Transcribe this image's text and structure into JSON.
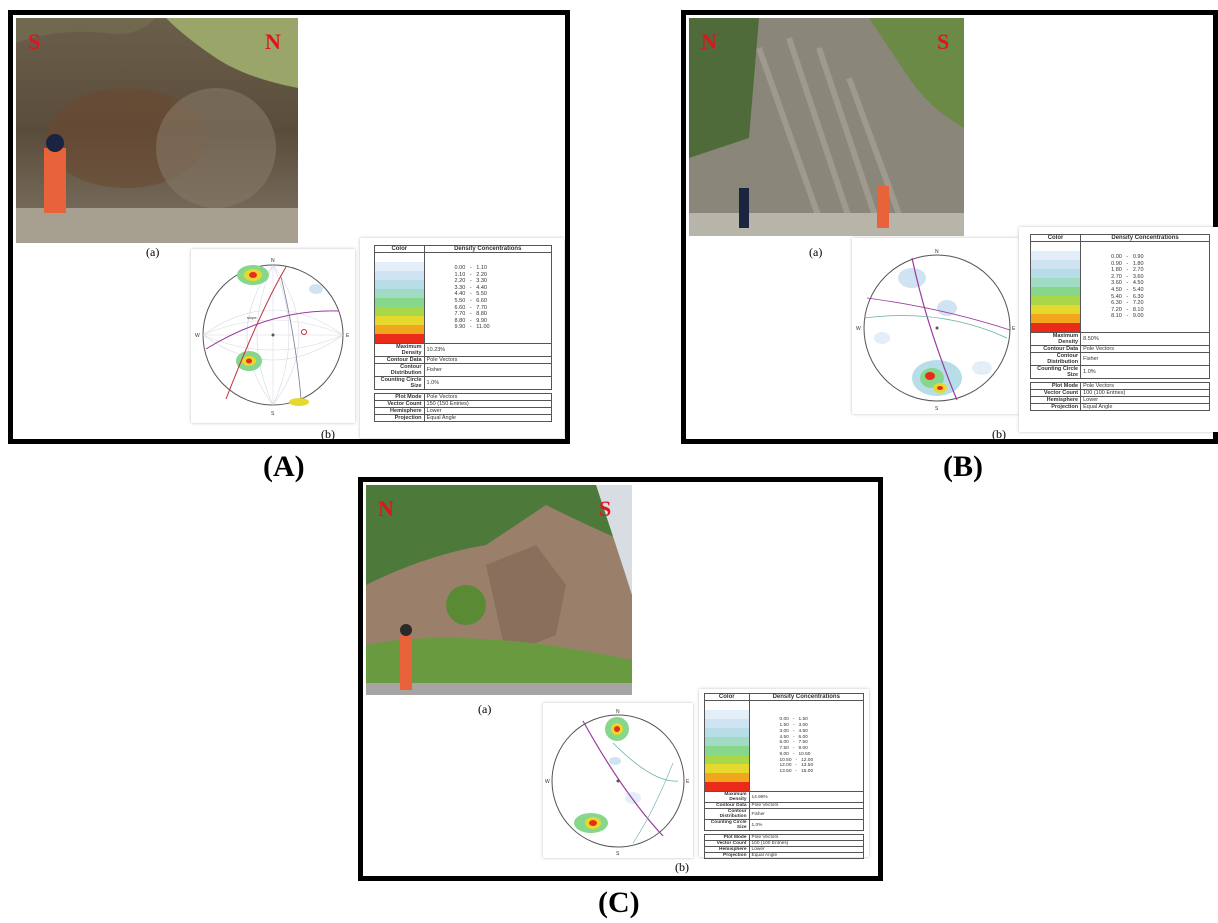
{
  "panels": [
    {
      "caption": "(A)",
      "photo_labels": {
        "left": "S",
        "right": "N"
      },
      "sublabel_a": "(a)",
      "sublabel_b": "(b)",
      "legend": {
        "color_header": "Color",
        "density_header": "Density Concentrations",
        "ranges": [
          "0.00   -   1.10",
          "1.10   -   2.20",
          "2.20   -   3.30",
          "3.30   -   4.40",
          "4.40   -   5.50",
          "5.50   -   6.60",
          "6.60   -   7.70",
          "7.70   -   8.80",
          "8.80   -   9.90",
          "9.90   -   11.00"
        ],
        "maximum_density": {
          "label": "Maximum Density",
          "value": "10.23%"
        },
        "contour_data": {
          "label": "Contour Data",
          "value": "Pole Vectors"
        },
        "contour_distribution": {
          "label": "Contour Distribution",
          "value": "Fisher"
        },
        "counting_circle_size": {
          "label": "Counting Circle Size",
          "value": "1.0%"
        },
        "plot_mode": {
          "label": "Plot Mode",
          "value": "Pole Vectors"
        },
        "vector_count": {
          "label": "Vector Count",
          "value": "150 (150 Entries)"
        },
        "hemisphere": {
          "label": "Hemisphere",
          "value": "Lower"
        },
        "projection": {
          "label": "Projection",
          "value": "Equal Angle"
        }
      },
      "stereonet": {
        "n": "N",
        "s": "S",
        "e": "E",
        "w": "W",
        "slope": "slope"
      }
    },
    {
      "caption": "(B)",
      "photo_labels": {
        "left": "N",
        "right": "S"
      },
      "sublabel_a": "(a)",
      "sublabel_b": "(b)",
      "legend": {
        "color_header": "Color",
        "density_header": "Density Concentrations",
        "ranges": [
          "0.00   -   0.90",
          "0.90   -   1.80",
          "1.80   -   2.70",
          "2.70   -   3.60",
          "3.60   -   4.50",
          "4.50   -   5.40",
          "5.40   -   6.30",
          "6.30   -   7.20",
          "7.20   -   8.10",
          "8.10   -   9.00"
        ],
        "maximum_density": {
          "label": "Maximum Density",
          "value": "8.50%"
        },
        "contour_data": {
          "label": "Contour Data",
          "value": "Pole Vectors"
        },
        "contour_distribution": {
          "label": "Contour Distribution",
          "value": "Fisher"
        },
        "counting_circle_size": {
          "label": "Counting Circle Size",
          "value": "1.0%"
        },
        "plot_mode": {
          "label": "Plot Mode",
          "value": "Pole Vectors"
        },
        "vector_count": {
          "label": "Vector Count",
          "value": "100 (100 Entries)"
        },
        "hemisphere": {
          "label": "Hemisphere",
          "value": "Lower"
        },
        "projection": {
          "label": "Projection",
          "value": "Equal Angle"
        }
      },
      "stereonet": {
        "n": "N",
        "s": "S",
        "e": "E",
        "w": "W"
      }
    },
    {
      "caption": "(C)",
      "photo_labels": {
        "left": "N",
        "right": "S"
      },
      "sublabel_a": "(a)",
      "sublabel_b": "(b)",
      "legend": {
        "color_header": "Color",
        "density_header": "Density Concentrations",
        "ranges": [
          "0.00   -   1.50",
          "1.50   -   3.00",
          "3.00   -   4.50",
          "4.50   -   6.00",
          "6.00   -   7.50",
          "7.50   -   9.00",
          "9.00   -   10.50",
          "10.50   -   12.00",
          "12.00   -   13.50",
          "13.50   -   15.00"
        ],
        "maximum_density": {
          "label": "Maximum Density",
          "value": "14.98%"
        },
        "contour_data": {
          "label": "Contour Data",
          "value": "Pole Vectors"
        },
        "contour_distribution": {
          "label": "Contour Distribution",
          "value": "Fisher"
        },
        "counting_circle_size": {
          "label": "Counting Circle Size",
          "value": "1.0%"
        },
        "plot_mode": {
          "label": "Plot Mode",
          "value": "Pole Vectors"
        },
        "vector_count": {
          "label": "Vector Count",
          "value": "100 (100 Entries)"
        },
        "hemisphere": {
          "label": "Hemisphere",
          "value": "Lower"
        },
        "projection": {
          "label": "Projection",
          "value": "Equal Angle"
        }
      },
      "stereonet": {
        "n": "N",
        "s": "S",
        "e": "E",
        "w": "W"
      }
    }
  ],
  "density_colors": [
    "#ffffff",
    "#e3eef8",
    "#cfe3f2",
    "#b7dde8",
    "#9fdcc3",
    "#86d68c",
    "#a8d84a",
    "#e6d92d",
    "#f2a61d",
    "#ea2b1a"
  ]
}
